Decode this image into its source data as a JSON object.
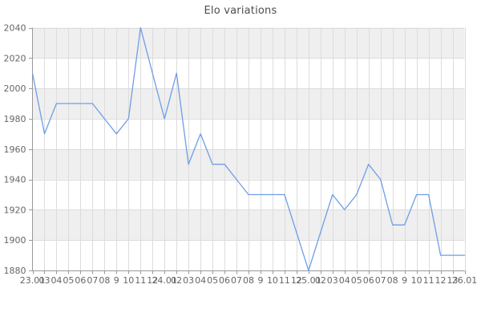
{
  "title": "Elo variations",
  "chart_data": {
    "type": "line",
    "title": "Elo variations",
    "x_labels": [
      "23.01",
      "03",
      "04",
      "05",
      "06",
      "07",
      "08",
      "9",
      "10",
      "11",
      "12",
      "24.01",
      "02",
      "03",
      "04",
      "05",
      "06",
      "07",
      "08",
      "9",
      "10",
      "11",
      "12",
      "25.01",
      "02",
      "03",
      "04",
      "05",
      "06",
      "07",
      "08",
      "9",
      "10",
      "11",
      "12",
      "13",
      "26.01"
    ],
    "values": [
      2010,
      1970,
      1990,
      1990,
      1990,
      1990,
      1980,
      1970,
      1980,
      2040,
      2010,
      1980,
      2010,
      1950,
      1970,
      1950,
      1950,
      1940,
      1930,
      1930,
      1930,
      1930,
      1905,
      1880,
      1905,
      1930,
      1920,
      1930,
      1950,
      1940,
      1910,
      1910,
      1930,
      1930,
      1890,
      1890,
      1890
    ],
    "ylim": [
      1880,
      2040
    ],
    "ytick_step": 20,
    "yticks": [
      1880,
      1900,
      1920,
      1940,
      1960,
      1980,
      2000,
      2020,
      2040
    ],
    "grid": true,
    "legend": "none",
    "xlabel": "",
    "ylabel": "",
    "colors": {
      "line": "#6e9ee7",
      "band": "#efefef",
      "grid": "#dcdcdc",
      "axis": "#999999",
      "tick": "#999999",
      "label": "#666666",
      "title": "#4d4d4d"
    }
  }
}
